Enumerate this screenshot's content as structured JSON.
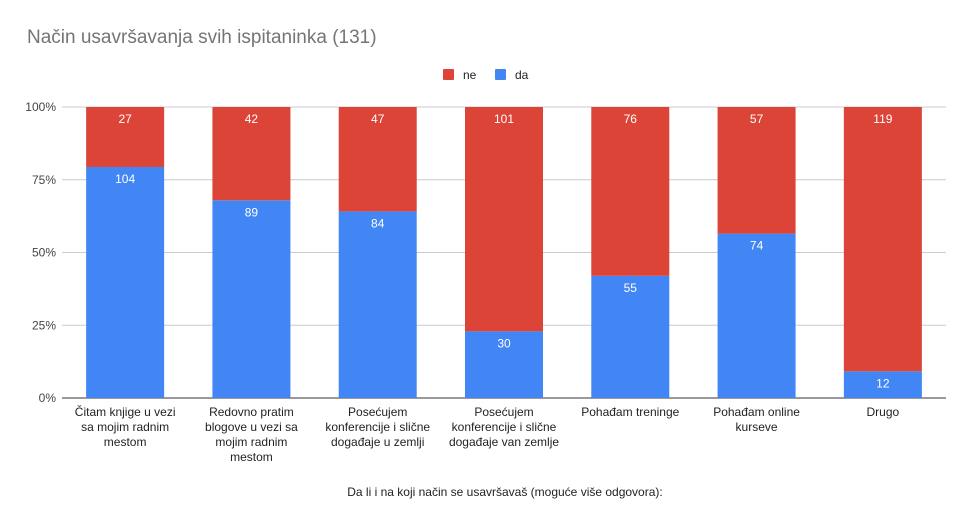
{
  "chart_data": {
    "type": "bar",
    "stacked": "percent",
    "title": "Način usavršavanja svih ispitaninka (131)",
    "xlabel": "Da li i na koji način se usavršavaš (moguće više odgovora):",
    "ylabel": "",
    "yticks": [
      "0%",
      "25%",
      "50%",
      "75%",
      "100%"
    ],
    "ylim": [
      0,
      100
    ],
    "grid": true,
    "legend_position": "top",
    "categories": [
      [
        "Čitam knjige u vezi",
        "sa mojim radnim",
        "mestom"
      ],
      [
        "Redovno pratim",
        "blogove u vezi sa",
        "mojim radnim",
        "mestom"
      ],
      [
        "Posećujem",
        "konferencije i slične",
        "događaje u zemlji"
      ],
      [
        "Posećujem",
        "konferencije i slične",
        "događaje van zemlje"
      ],
      [
        "Pohađam treninge"
      ],
      [
        "Pohađam online",
        "kurseve"
      ],
      [
        "Drugo"
      ]
    ],
    "series": [
      {
        "name": "ne",
        "color": "#db4437",
        "values": [
          27,
          42,
          47,
          101,
          76,
          57,
          119
        ]
      },
      {
        "name": "da",
        "color": "#4285f4",
        "values": [
          104,
          89,
          84,
          30,
          55,
          74,
          12
        ]
      }
    ]
  }
}
